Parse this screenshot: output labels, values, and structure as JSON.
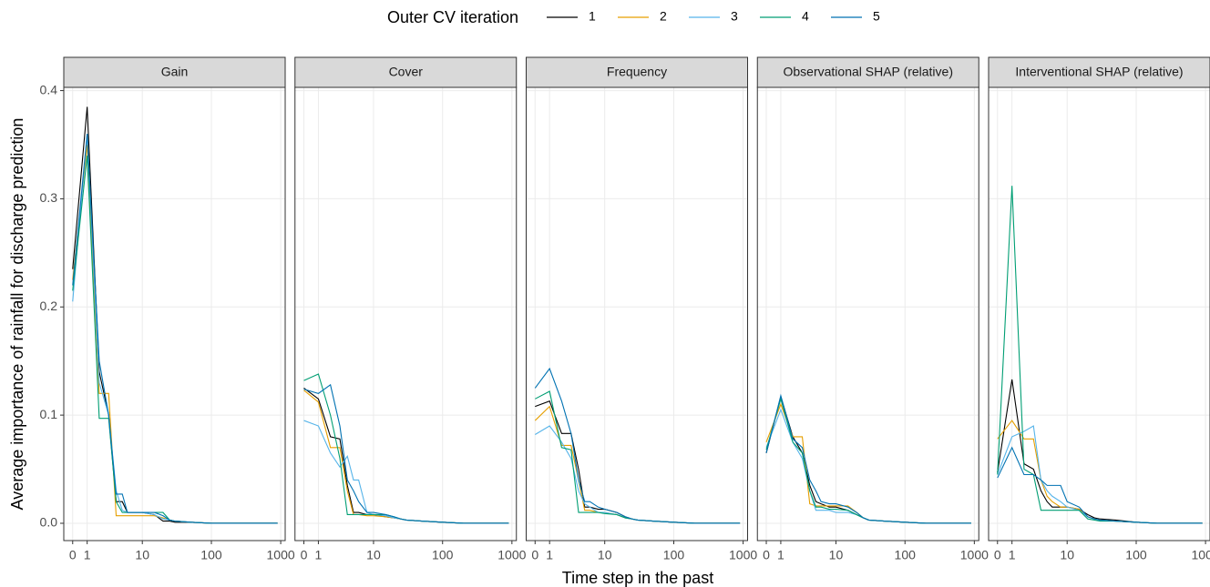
{
  "chart_data": {
    "type": "line",
    "legend_title": "Outer CV iteration",
    "y_label": "Average importance of rainfall for discharge prediction",
    "x_label": "Time step in the past",
    "xscale": "pseudo_log",
    "grid": true,
    "xlim": [
      -0.6,
      1160
    ],
    "ylim": [
      -0.016,
      0.403
    ],
    "xticks": [
      0,
      1,
      10,
      100,
      1000
    ],
    "yticks": [
      {
        "value": 0,
        "label": "0.0"
      },
      {
        "value": 0.1,
        "label": "0.1"
      },
      {
        "value": 0.2,
        "label": "0.2"
      },
      {
        "value": 0.3,
        "label": "0.3"
      },
      {
        "value": 0.4,
        "label": "0.4"
      }
    ],
    "x": [
      0,
      1,
      2,
      3,
      4,
      5,
      6,
      8,
      10,
      15,
      20,
      25,
      30,
      50,
      100,
      200,
      500,
      900
    ],
    "series": [
      {
        "name": "1",
        "color": "#000000"
      },
      {
        "name": "2",
        "color": "#E69F00"
      },
      {
        "name": "3",
        "color": "#56B4E9"
      },
      {
        "name": "4",
        "color": "#009E73"
      },
      {
        "name": "5",
        "color": "#0072B2"
      }
    ],
    "facets": [
      {
        "title": "Gain",
        "values": [
          [
            0.235,
            0.385,
            0.14,
            0.1,
            0.02,
            0.02,
            0.01,
            0.01,
            0.01,
            0.008,
            0.002,
            0.002,
            0.001,
            0.001,
            0,
            0,
            0,
            0
          ],
          [
            0.225,
            0.35,
            0.12,
            0.12,
            0.007,
            0.007,
            0.007,
            0.007,
            0.007,
            0.007,
            0.005,
            0.003,
            0.002,
            0.001,
            0,
            0,
            0,
            0
          ],
          [
            0.205,
            0.36,
            0.13,
            0.1,
            0.03,
            0.012,
            0.01,
            0.01,
            0.01,
            0.008,
            0.004,
            0.003,
            0.002,
            0.001,
            0,
            0,
            0,
            0
          ],
          [
            0.215,
            0.34,
            0.097,
            0.097,
            0.02,
            0.01,
            0.01,
            0.01,
            0.01,
            0.01,
            0.01,
            0.003,
            0.002,
            0.001,
            0,
            0,
            0,
            0
          ],
          [
            0.22,
            0.36,
            0.15,
            0.1,
            0.027,
            0.027,
            0.01,
            0.01,
            0.01,
            0.01,
            0.007,
            0.003,
            0.002,
            0.001,
            0,
            0,
            0,
            0
          ]
        ]
      },
      {
        "title": "Cover",
        "values": [
          [
            0.125,
            0.115,
            0.08,
            0.078,
            0.035,
            0.01,
            0.01,
            0.008,
            0.008,
            0.006,
            0.005,
            0.004,
            0.003,
            0.002,
            0.001,
            0,
            0,
            0
          ],
          [
            0.123,
            0.112,
            0.07,
            0.07,
            0.03,
            0.008,
            0.008,
            0.007,
            0.007,
            0.006,
            0.005,
            0.004,
            0.003,
            0.002,
            0.001,
            0,
            0,
            0
          ],
          [
            0.095,
            0.09,
            0.065,
            0.052,
            0.062,
            0.04,
            0.04,
            0.01,
            0.008,
            0.007,
            0.005,
            0.004,
            0.003,
            0.002,
            0.001,
            0,
            0,
            0
          ],
          [
            0.132,
            0.138,
            0.1,
            0.06,
            0.008,
            0.008,
            0.008,
            0.008,
            0.008,
            0.008,
            0.006,
            0.004,
            0.003,
            0.002,
            0.001,
            0,
            0,
            0
          ],
          [
            0.124,
            0.12,
            0.128,
            0.09,
            0.04,
            0.03,
            0.02,
            0.01,
            0.01,
            0.008,
            0.006,
            0.004,
            0.003,
            0.002,
            0.001,
            0,
            0,
            0
          ]
        ]
      },
      {
        "title": "Frequency",
        "values": [
          [
            0.108,
            0.113,
            0.083,
            0.083,
            0.05,
            0.015,
            0.015,
            0.013,
            0.013,
            0.01,
            0.006,
            0.004,
            0.003,
            0.002,
            0.001,
            0,
            0,
            0
          ],
          [
            0.095,
            0.108,
            0.072,
            0.072,
            0.04,
            0.012,
            0.012,
            0.01,
            0.01,
            0.008,
            0.005,
            0.004,
            0.003,
            0.002,
            0.001,
            0,
            0,
            0
          ],
          [
            0.082,
            0.09,
            0.075,
            0.06,
            0.03,
            0.018,
            0.015,
            0.01,
            0.01,
            0.008,
            0.005,
            0.004,
            0.003,
            0.002,
            0.001,
            0,
            0,
            0
          ],
          [
            0.115,
            0.122,
            0.07,
            0.068,
            0.01,
            0.01,
            0.01,
            0.01,
            0.009,
            0.008,
            0.005,
            0.004,
            0.003,
            0.002,
            0.001,
            0,
            0,
            0
          ],
          [
            0.125,
            0.143,
            0.113,
            0.083,
            0.04,
            0.02,
            0.02,
            0.015,
            0.013,
            0.01,
            0.006,
            0.004,
            0.003,
            0.002,
            0.001,
            0,
            0,
            0
          ]
        ]
      },
      {
        "title": "Observational SHAP (relative)",
        "values": [
          [
            0.065,
            0.117,
            0.08,
            0.065,
            0.035,
            0.02,
            0.018,
            0.015,
            0.015,
            0.012,
            0.008,
            0.005,
            0.003,
            0.002,
            0.001,
            0,
            0,
            0
          ],
          [
            0.075,
            0.11,
            0.08,
            0.08,
            0.018,
            0.016,
            0.016,
            0.016,
            0.016,
            0.016,
            0.01,
            0.005,
            0.003,
            0.002,
            0.001,
            0,
            0,
            0
          ],
          [
            0.07,
            0.105,
            0.075,
            0.06,
            0.03,
            0.012,
            0.012,
            0.012,
            0.01,
            0.01,
            0.008,
            0.005,
            0.003,
            0.002,
            0.001,
            0,
            0,
            0
          ],
          [
            0.068,
            0.115,
            0.075,
            0.065,
            0.03,
            0.015,
            0.015,
            0.013,
            0.013,
            0.012,
            0.008,
            0.005,
            0.003,
            0.002,
            0.001,
            0,
            0,
            0
          ],
          [
            0.065,
            0.118,
            0.078,
            0.07,
            0.04,
            0.03,
            0.02,
            0.018,
            0.018,
            0.015,
            0.01,
            0.005,
            0.003,
            0.002,
            0.001,
            0,
            0,
            0
          ]
        ]
      },
      {
        "title": "Interventional SHAP (relative)",
        "values": [
          [
            0.047,
            0.133,
            0.055,
            0.05,
            0.03,
            0.02,
            0.015,
            0.015,
            0.015,
            0.013,
            0.008,
            0.005,
            0.004,
            0.003,
            0.001,
            0,
            0,
            0
          ],
          [
            0.078,
            0.095,
            0.078,
            0.078,
            0.04,
            0.025,
            0.02,
            0.015,
            0.015,
            0.013,
            0.006,
            0.004,
            0.003,
            0.002,
            0.001,
            0,
            0,
            0
          ],
          [
            0.045,
            0.08,
            0.085,
            0.09,
            0.04,
            0.03,
            0.025,
            0.02,
            0.015,
            0.012,
            0.006,
            0.004,
            0.003,
            0.002,
            0.001,
            0,
            0,
            0
          ],
          [
            0.045,
            0.312,
            0.05,
            0.045,
            0.012,
            0.012,
            0.012,
            0.012,
            0.012,
            0.012,
            0.004,
            0.003,
            0.002,
            0.002,
            0.001,
            0,
            0,
            0
          ],
          [
            0.042,
            0.07,
            0.045,
            0.045,
            0.04,
            0.035,
            0.035,
            0.035,
            0.02,
            0.015,
            0.006,
            0.004,
            0.003,
            0.002,
            0.001,
            0,
            0,
            0
          ]
        ]
      }
    ]
  }
}
